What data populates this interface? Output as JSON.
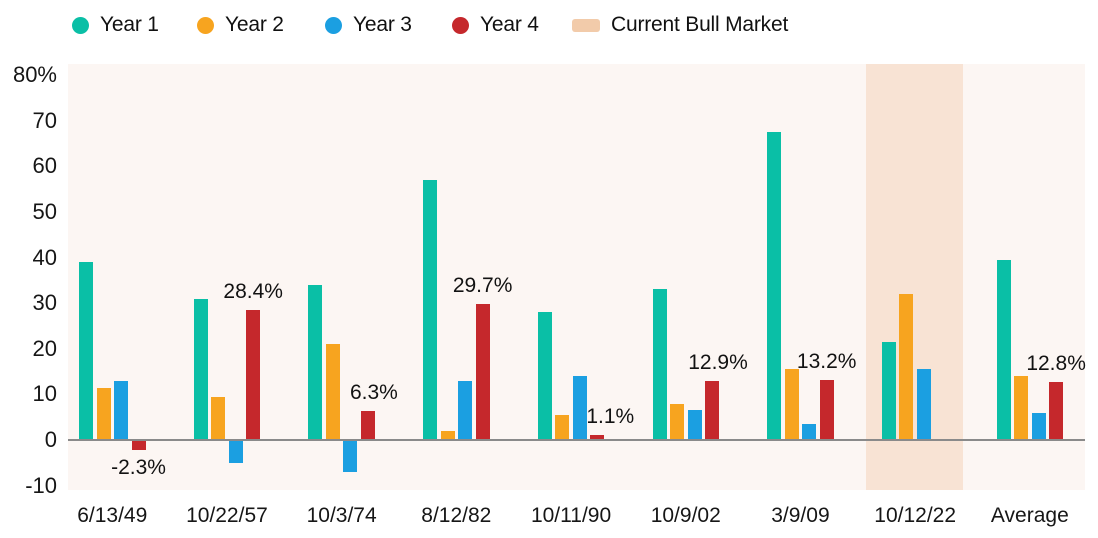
{
  "legend": {
    "items": [
      {
        "label": "Year 1",
        "color": "#0abfa6",
        "shape": "circle"
      },
      {
        "label": "Year 2",
        "color": "#f7a41f",
        "shape": "circle"
      },
      {
        "label": "Year 3",
        "color": "#1b9fe1",
        "shape": "circle"
      },
      {
        "label": "Year 4",
        "color": "#c5282c",
        "shape": "circle"
      },
      {
        "label": "Current Bull Market",
        "color": "#f2cbaa",
        "shape": "swatch"
      }
    ]
  },
  "chart_data": {
    "type": "bar",
    "title": "",
    "categories": [
      "6/13/49",
      "10/22/57",
      "10/3/74",
      "8/12/82",
      "10/11/90",
      "10/9/02",
      "3/9/09",
      "10/12/22",
      "Average"
    ],
    "series": [
      {
        "name": "Year 1",
        "color": "#0abfa6",
        "values": [
          39,
          31,
          34,
          57,
          28,
          33,
          67.5,
          21.5,
          39.5
        ]
      },
      {
        "name": "Year 2",
        "color": "#f7a41f",
        "values": [
          11.5,
          9.5,
          21,
          2,
          5.5,
          8,
          15.5,
          32,
          14
        ]
      },
      {
        "name": "Year 3",
        "color": "#1b9fe1",
        "values": [
          13,
          -5,
          -7,
          13,
          14,
          6.5,
          3.5,
          15.5,
          6
        ]
      },
      {
        "name": "Year 4",
        "color": "#c5282c",
        "values": [
          -2.3,
          28.4,
          6.3,
          29.7,
          1.1,
          12.9,
          13.2,
          null,
          12.8
        ]
      }
    ],
    "annotations": [
      {
        "category": "6/13/49",
        "series": "Year 4",
        "text": "-2.3%",
        "placement": "below",
        "dx": 0
      },
      {
        "category": "10/22/57",
        "series": "Year 4",
        "text": "28.4%",
        "placement": "above",
        "dx": 0
      },
      {
        "category": "10/3/74",
        "series": "Year 4",
        "text": "6.3%",
        "placement": "above",
        "dx": 6
      },
      {
        "category": "8/12/82",
        "series": "Year 4",
        "text": "29.7%",
        "placement": "above",
        "dx": 0
      },
      {
        "category": "10/11/90",
        "series": "Year 4",
        "text": "1.1%",
        "placement": "above",
        "dx": 13
      },
      {
        "category": "10/9/02",
        "series": "Year 4",
        "text": "12.9%",
        "placement": "above",
        "dx": 6
      },
      {
        "category": "3/9/09",
        "series": "Year 4",
        "text": "13.2%",
        "placement": "above",
        "dx": 0
      },
      {
        "category": "Average",
        "series": "Year 4",
        "text": "12.8%",
        "placement": "above",
        "dx": 0
      }
    ],
    "y_axis": {
      "tick_labels": [
        "80%",
        "70",
        "60",
        "50",
        "40",
        "30",
        "20",
        "10",
        "0",
        "-10"
      ],
      "tick_values": [
        80,
        70,
        60,
        50,
        40,
        30,
        20,
        10,
        0,
        -10
      ],
      "min": -10,
      "max": 80
    },
    "highlight_band": {
      "category": "10/12/22",
      "label": "Current Bull Market",
      "color": "#f8e3d4"
    },
    "xlabel": "",
    "ylabel": "",
    "grid": false,
    "legend_position": "top",
    "plot_background": "#fcf6f3",
    "axis_line_color": "#8a8a8a"
  }
}
